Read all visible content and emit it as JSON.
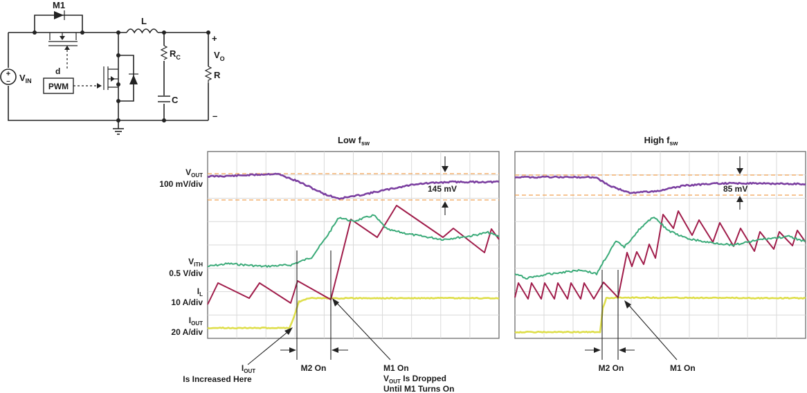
{
  "schematic": {
    "labels": {
      "m1": "M1",
      "l": "L",
      "rc": "R",
      "rc_sub": "C",
      "c": "C",
      "vo": "V",
      "vo_sub": "O",
      "r": "R",
      "vin": "V",
      "vin_sub": "IN",
      "d": "d",
      "pwm": "PWM",
      "plus": "+",
      "minus": "–",
      "source_plus": "+",
      "source_minus": "–"
    }
  },
  "panels": {
    "low": {
      "title": "Low f",
      "title_sub": "sw",
      "dv_annotation": "145 mV"
    },
    "high": {
      "title": "High f",
      "title_sub": "sw",
      "dv_annotation": "85 mV"
    }
  },
  "scale_labels": {
    "vout_name": "V",
    "vout_sub": "OUT",
    "vout_scale": "100 mV/div",
    "vith_name": "V",
    "vith_sub": "ITH",
    "vith_scale": "0.5 V/div",
    "il_name": "I",
    "il_sub": "L",
    "il_scale": "10 A/div",
    "iout_name": "I",
    "iout_sub": "OUT",
    "iout_scale": "20 A/div"
  },
  "annotations": {
    "iout_line1_name": "I",
    "iout_line1_sub": "OUT",
    "iout_line2": "Is Increased Here",
    "m2_on_low": "M2 On",
    "m1_on_low_line1": "M1 On",
    "m1_on_low_line2_name": "V",
    "m1_on_low_line2_sub": "OUT",
    "m1_on_low_line2_rest": " Is Dropped",
    "m1_on_low_line3": "Until M1 Turns On",
    "m2_on_high": "M2 On",
    "m1_on_high": "M1 On"
  },
  "colors": {
    "vout": "#7b3fa0",
    "vith": "#3aaa78",
    "il": "#a01c4a",
    "iout": "#dede4a",
    "reference": "#f0a050"
  }
}
